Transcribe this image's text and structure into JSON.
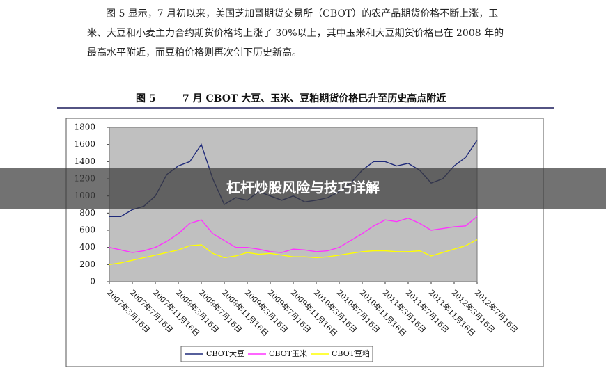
{
  "document": {
    "paragraph": [
      "图 5 显示，7 月初以来，美国芝加哥期货交易所（CBOT）的农产品期货价格不断上涨，玉",
      "米、大豆和小麦主力合约期货价格均上涨了 30%以上，其中玉米和大豆期货价格已在 2008 年的",
      "最高水平附近，而豆粕价格则再次创下历史新高。"
    ],
    "figure_number": "图 5",
    "figure_caption": "7 月 CBOT 大豆、玉米、豆粕期货价格已升至历史高点附近"
  },
  "banner": "杠杆炒股风险与技巧详解",
  "chart_data": {
    "type": "line",
    "categories": [
      "2007年3月16日",
      null,
      "2007年7月16日",
      null,
      "2007年11月16日",
      null,
      "2008年3月16日",
      null,
      "2008年7月16日",
      null,
      "2008年11月16日",
      null,
      "2009年3月16日",
      null,
      "2009年7月16日",
      null,
      "2009年11月16日",
      null,
      "2010年3月16日",
      null,
      "2010年7月16日",
      null,
      "2010年11月16日",
      null,
      "2011年3月16日",
      null,
      "2011年7月16日",
      null,
      "2011年11月16日",
      null,
      "2012年3月16日",
      null,
      "2012年7月16日"
    ],
    "series": [
      {
        "name": "CBOT大豆",
        "color": "#1f2a7a",
        "values": [
          760,
          760,
          840,
          880,
          1000,
          1250,
          1350,
          1400,
          1600,
          1200,
          900,
          980,
          950,
          1050,
          1000,
          950,
          1000,
          930,
          950,
          980,
          1050,
          1150,
          1300,
          1400,
          1400,
          1350,
          1380,
          1300,
          1150,
          1200,
          1350,
          1450,
          1650
        ]
      },
      {
        "name": "CBOT玉米",
        "color": "#ff33ff",
        "values": [
          400,
          370,
          340,
          360,
          400,
          470,
          560,
          680,
          720,
          560,
          480,
          400,
          400,
          380,
          350,
          340,
          380,
          370,
          350,
          360,
          400,
          480,
          560,
          650,
          720,
          700,
          740,
          680,
          600,
          620,
          640,
          650,
          760
        ]
      },
      {
        "name": "CBOT豆粕",
        "color": "#ffff00",
        "values": [
          200,
          220,
          250,
          280,
          310,
          340,
          370,
          420,
          430,
          330,
          280,
          300,
          340,
          320,
          330,
          310,
          290,
          290,
          280,
          290,
          310,
          330,
          350,
          360,
          360,
          350,
          350,
          360,
          300,
          340,
          380,
          420,
          490
        ]
      }
    ],
    "ylim": [
      0,
      1800
    ],
    "yticks": [
      0,
      200,
      400,
      600,
      800,
      1000,
      1200,
      1400,
      1600,
      1800
    ],
    "plot_background": "#c0c0c0",
    "legend": "bottom"
  }
}
